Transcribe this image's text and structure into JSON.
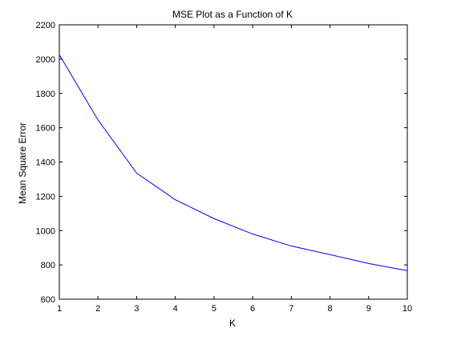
{
  "chart_data": {
    "type": "line",
    "title": "MSE Plot as a Function of K",
    "xlabel": "K",
    "ylabel": "Mean Square Error",
    "xlim": [
      1,
      10
    ],
    "ylim": [
      600,
      2200
    ],
    "xticks": [
      1,
      2,
      3,
      4,
      5,
      6,
      7,
      8,
      9,
      10
    ],
    "yticks": [
      600,
      800,
      1000,
      1200,
      1400,
      1600,
      1800,
      2000,
      2200
    ],
    "grid": false,
    "legend": "none",
    "series": [
      {
        "color": "#0000ff",
        "x": [
          1,
          2,
          3,
          4,
          5,
          6,
          7,
          8,
          9,
          10
        ],
        "y": [
          2025,
          1645,
          1335,
          1180,
          1070,
          980,
          910,
          860,
          808,
          766
        ]
      }
    ]
  }
}
